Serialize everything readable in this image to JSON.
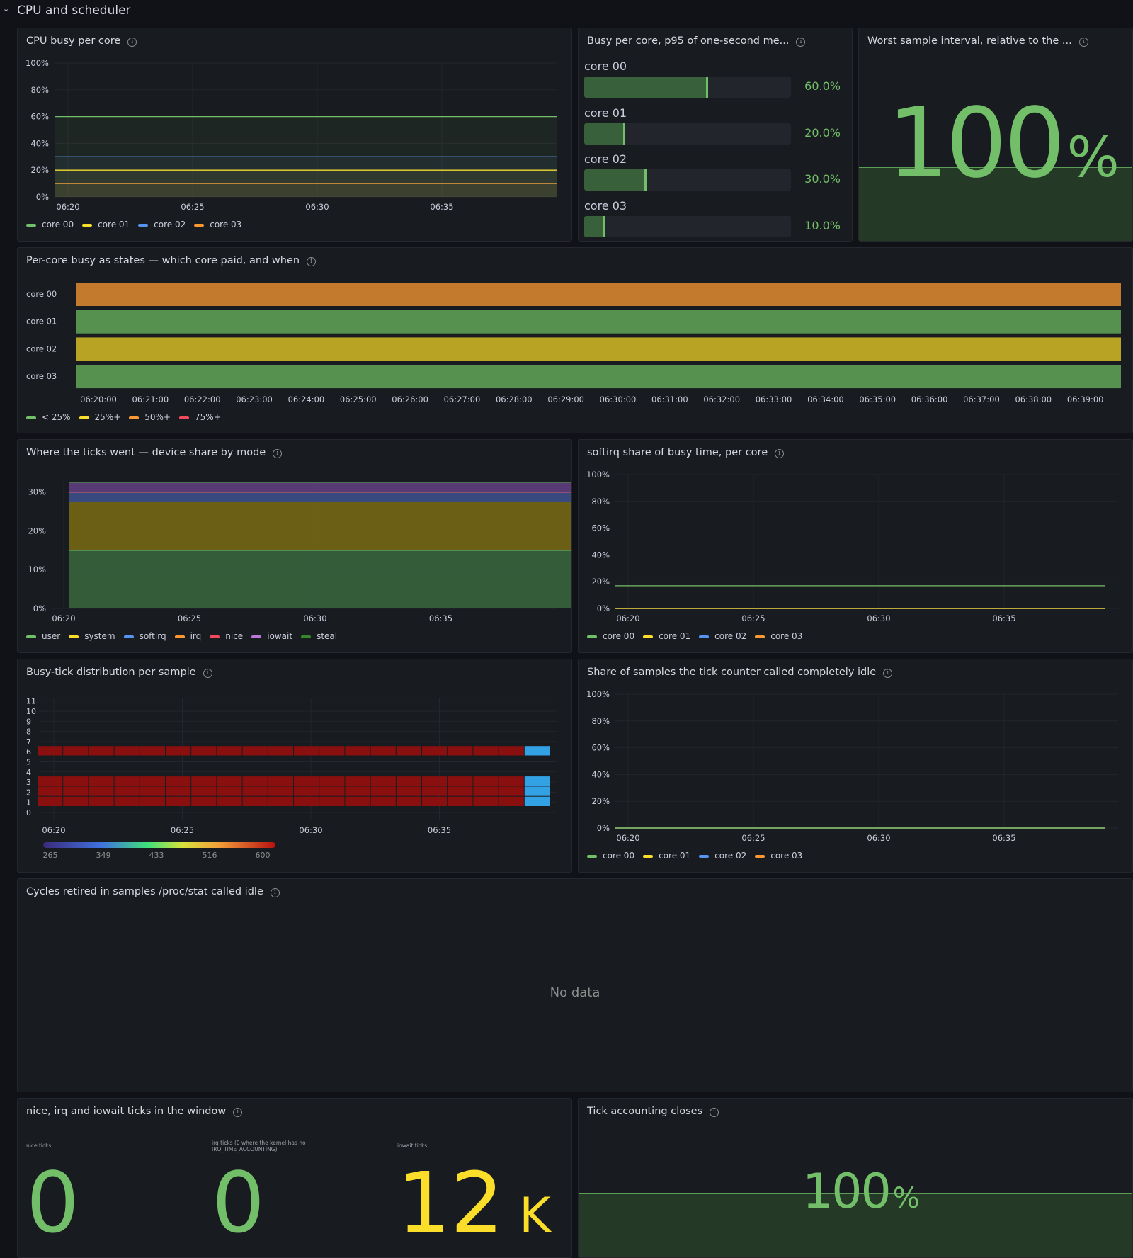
{
  "row": {
    "title": "CPU and scheduler"
  },
  "time_ticks": [
    "06:20",
    "06:25",
    "06:30",
    "06:35"
  ],
  "series_colors": {
    "core 00": "#73bf69",
    "core 01": "#fade2a",
    "core 02": "#5794f2",
    "core 03": "#ff9830"
  },
  "panels": {
    "cpu_busy": {
      "title": "CPU busy per core",
      "legend": [
        "core 00",
        "core 01",
        "core 02",
        "core 03"
      ],
      "y_ticks": [
        "100%",
        "80%",
        "60%",
        "40%",
        "20%",
        "0%"
      ]
    },
    "p95": {
      "title": "Busy per core, p95 of one-second me...",
      "rows": [
        {
          "label": "core 00",
          "fraction": 0.6,
          "value_text": "60.0%"
        },
        {
          "label": "core 01",
          "fraction": 0.2,
          "value_text": "20.0%"
        },
        {
          "label": "core 02",
          "fraction": 0.3,
          "value_text": "30.0%"
        },
        {
          "label": "core 03",
          "fraction": 0.1,
          "value_text": "10.0%"
        }
      ]
    },
    "worst": {
      "title": "Worst sample interval, relative to the ...",
      "value": "100",
      "unit": "%",
      "level": 1.0
    },
    "states": {
      "title": "Per-core busy as states — which core paid, and when",
      "rows": [
        {
          "label": "core 00",
          "color": "#c47a2c"
        },
        {
          "label": "core 01",
          "color": "#56914f"
        },
        {
          "label": "core 02",
          "color": "#b8a324"
        },
        {
          "label": "core 03",
          "color": "#56914f"
        }
      ],
      "x_ticks": [
        "06:20:00",
        "06:21:00",
        "06:22:00",
        "06:23:00",
        "06:24:00",
        "06:25:00",
        "06:26:00",
        "06:27:00",
        "06:28:00",
        "06:29:00",
        "06:30:00",
        "06:31:00",
        "06:32:00",
        "06:33:00",
        "06:34:00",
        "06:35:00",
        "06:36:00",
        "06:37:00",
        "06:38:00",
        "06:39:00"
      ],
      "legend": [
        {
          "label": "< 25%",
          "color": "#73bf69"
        },
        {
          "label": "25%+",
          "color": "#fade2a"
        },
        {
          "label": "50%+",
          "color": "#ff9830"
        },
        {
          "label": "75%+",
          "color": "#f2495c"
        }
      ]
    },
    "ticks_mode": {
      "title": "Where the ticks went — device share by mode",
      "y_ticks": [
        "30%",
        "20%",
        "10%",
        "0%"
      ],
      "legend": [
        {
          "label": "user",
          "color": "#73bf69"
        },
        {
          "label": "system",
          "color": "#fade2a"
        },
        {
          "label": "softirq",
          "color": "#5794f2"
        },
        {
          "label": "irq",
          "color": "#ff9830"
        },
        {
          "label": "nice",
          "color": "#f2495c"
        },
        {
          "label": "iowait",
          "color": "#b877d9"
        },
        {
          "label": "steal",
          "color": "#37872d"
        }
      ]
    },
    "softirq": {
      "title": "softirq share of busy time, per core",
      "legend": [
        "core 00",
        "core 01",
        "core 02",
        "core 03"
      ],
      "y_ticks": [
        "100%",
        "80%",
        "60%",
        "40%",
        "20%",
        "0%"
      ]
    },
    "heatmap": {
      "title": "Busy-tick distribution per sample",
      "y_ticks": [
        "11",
        "10",
        "9",
        "8",
        "7",
        "6",
        "5",
        "4",
        "3",
        "2",
        "1",
        "0"
      ],
      "scale_ticks": [
        "265",
        "349",
        "433",
        "516",
        "600"
      ]
    },
    "idle_share": {
      "title": "Share of samples the tick counter called completely idle",
      "legend": [
        "core 00",
        "core 01",
        "core 02",
        "core 03"
      ],
      "y_ticks": [
        "100%",
        "80%",
        "60%",
        "40%",
        "20%",
        "0%"
      ]
    },
    "cycles": {
      "title": "Cycles retired in samples /proc/stat called idle",
      "no_data": "No data"
    },
    "nice_irq": {
      "title": "nice, irq and iowait ticks in the window",
      "stats": [
        {
          "label": "nice ticks",
          "value": "0",
          "unit": "",
          "color": "#73bf69"
        },
        {
          "label": "irq ticks (0 where the kernel has no IRQ_TIME_ACCOUNTING)",
          "value": "0",
          "unit": "",
          "color": "#73bf69"
        },
        {
          "label": "iowait ticks",
          "value": "12",
          "unit": "K",
          "color": "#fade2a"
        }
      ]
    },
    "tick_acc": {
      "title": "Tick accounting closes",
      "value": "100",
      "unit": "%",
      "level": 0.5
    }
  },
  "chart_data": [
    {
      "type": "line",
      "title": "CPU busy per core",
      "x": [
        "06:20",
        "06:25",
        "06:30",
        "06:35"
      ],
      "ylim": [
        0,
        100
      ],
      "series": [
        {
          "name": "core 00",
          "values": [
            60,
            60,
            60,
            60
          ]
        },
        {
          "name": "core 01",
          "values": [
            20,
            20,
            20,
            20
          ]
        },
        {
          "name": "core 02",
          "values": [
            30,
            30,
            30,
            30
          ]
        },
        {
          "name": "core 03",
          "values": [
            10,
            10,
            10,
            10
          ]
        }
      ]
    },
    {
      "type": "area",
      "title": "Where the ticks went — device share by mode",
      "x": [
        "06:20",
        "06:25",
        "06:30",
        "06:35"
      ],
      "ylim": [
        0,
        32.5
      ],
      "stacked": true,
      "series": [
        {
          "name": "user",
          "values": [
            15,
            15,
            15,
            15
          ]
        },
        {
          "name": "system",
          "values": [
            12.5,
            12.5,
            12.5,
            12.5
          ]
        },
        {
          "name": "softirq",
          "values": [
            2.5,
            2.5,
            2.5,
            2.5
          ]
        },
        {
          "name": "irq",
          "values": [
            0,
            0,
            0,
            0
          ]
        },
        {
          "name": "nice",
          "values": [
            0,
            0,
            0,
            0
          ]
        },
        {
          "name": "iowait",
          "values": [
            2.5,
            2.5,
            2.5,
            2.5
          ]
        },
        {
          "name": "steal",
          "values": [
            0,
            0,
            0,
            0
          ]
        }
      ]
    },
    {
      "type": "line",
      "title": "softirq share of busy time, per core",
      "x": [
        "06:20",
        "06:25",
        "06:30",
        "06:35"
      ],
      "ylim": [
        0,
        100
      ],
      "series": [
        {
          "name": "core 00",
          "values": [
            17,
            17,
            17,
            17
          ]
        },
        {
          "name": "core 01",
          "values": [
            0,
            0,
            0,
            0
          ]
        },
        {
          "name": "core 02",
          "values": [
            0,
            0,
            0,
            0
          ]
        },
        {
          "name": "core 03",
          "values": [
            0,
            0,
            0,
            0
          ]
        }
      ]
    },
    {
      "type": "heatmap",
      "title": "Busy-tick distribution per sample",
      "x_ticks": [
        "06:20",
        "06:25",
        "06:30",
        "06:35"
      ],
      "ylim": [
        0,
        11
      ],
      "populated_buckets": [
        1,
        2,
        3,
        6
      ],
      "columns": 20,
      "value_range": [
        265,
        600
      ]
    },
    {
      "type": "line",
      "title": "Share of samples the tick counter called completely idle",
      "x": [
        "06:20",
        "06:25",
        "06:30",
        "06:35"
      ],
      "ylim": [
        0,
        100
      ],
      "series": [
        {
          "name": "core 00",
          "values": [
            0,
            0,
            0,
            0
          ]
        },
        {
          "name": "core 01",
          "values": [
            0,
            0,
            0,
            0
          ]
        },
        {
          "name": "core 02",
          "values": [
            0,
            0,
            0,
            0
          ]
        },
        {
          "name": "core 03",
          "values": [
            0,
            0,
            0,
            0
          ]
        }
      ]
    }
  ]
}
